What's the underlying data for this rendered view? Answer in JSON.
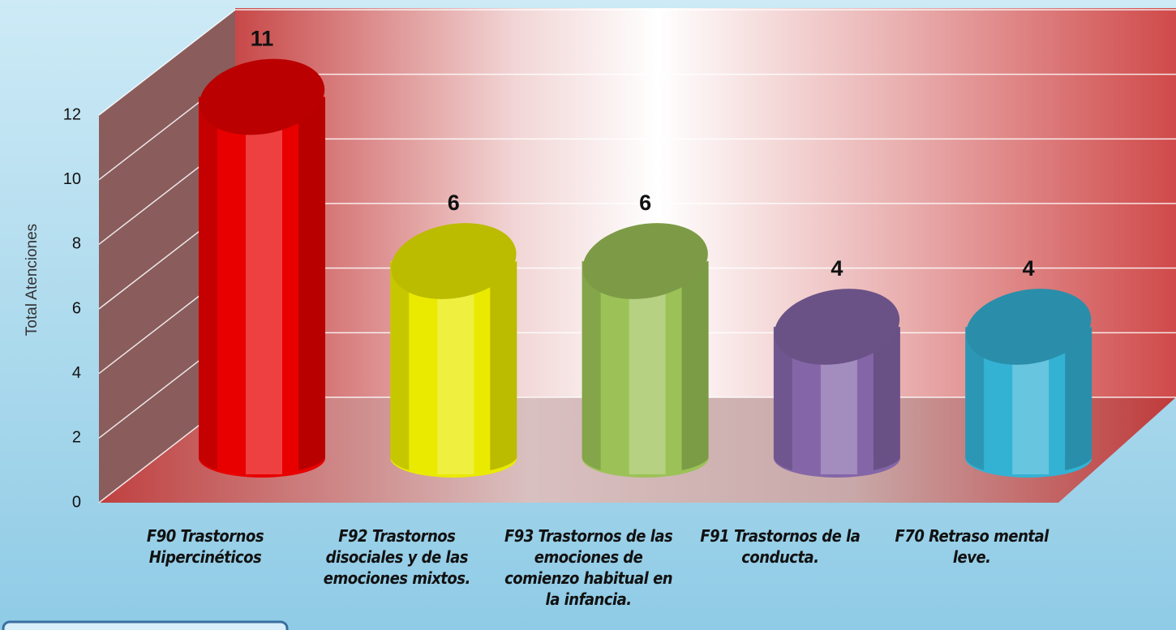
{
  "chart_data": {
    "type": "bar",
    "ylabel": "Total Atenciones",
    "categories": [
      "F90 Trastornos Hipercinéticos",
      "F92 Trastornos disociales y de las emociones mixtos.",
      "F93 Trastornos de las emociones de comienzo habitual en la infancia.",
      "F91 Trastornos de la conducta.",
      "F70 Retraso mental leve."
    ],
    "values": [
      11,
      6,
      6,
      4,
      4
    ],
    "colors": [
      "#e80000",
      "#eaea00",
      "#9cc257",
      "#8466a8",
      "#34b2d4"
    ],
    "ylim": [
      0,
      12
    ],
    "yticks": [
      0,
      2,
      4,
      6,
      8,
      10,
      12
    ],
    "grid": true
  }
}
